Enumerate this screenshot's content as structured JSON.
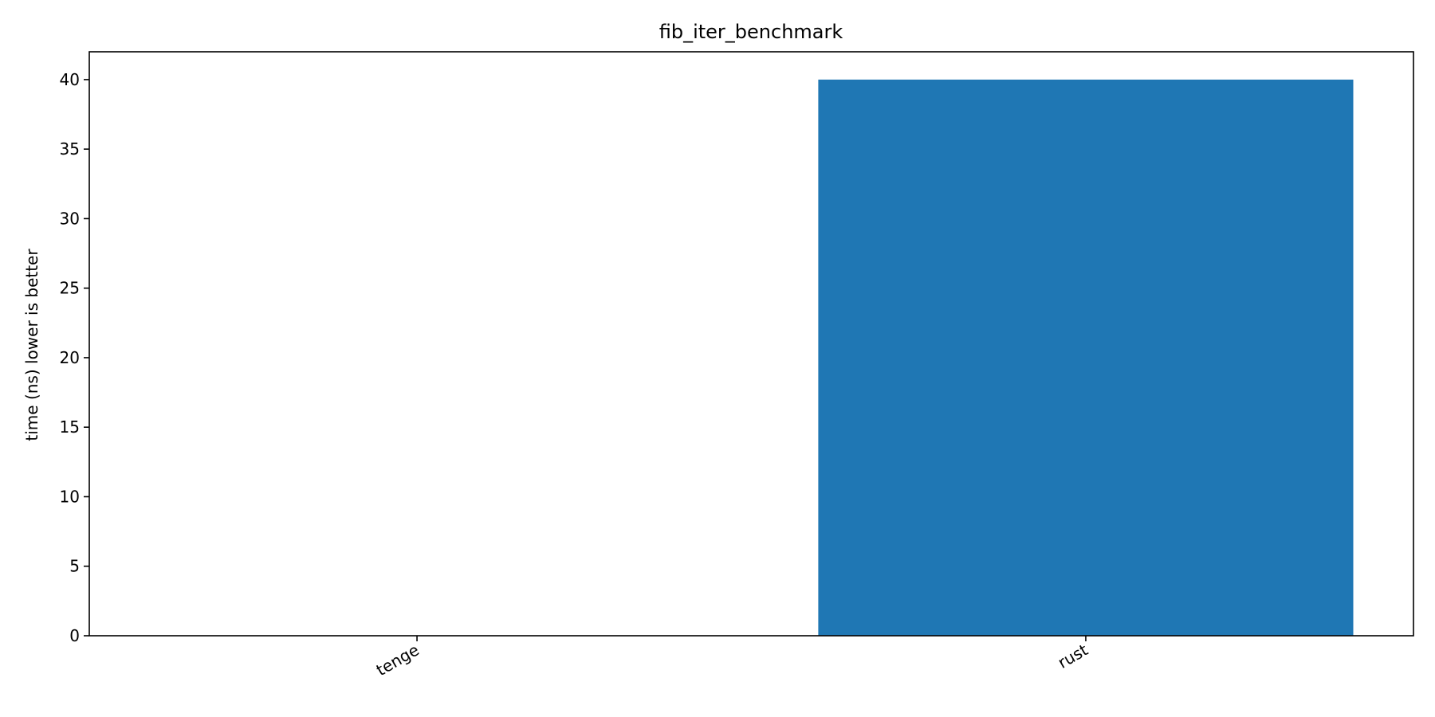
{
  "chart_data": {
    "type": "bar",
    "title": "fib_iter_benchmark",
    "xlabel": "",
    "ylabel": "time (ns) lower is better",
    "categories": [
      "tenge",
      "rust"
    ],
    "values": [
      0,
      40
    ],
    "ylim": [
      0,
      42
    ],
    "yticks": [
      0,
      5,
      10,
      15,
      20,
      25,
      30,
      35,
      40
    ],
    "bar_color": "#1f77b4",
    "grid": false,
    "legend": "none",
    "xtick_rotation": "30 degrees"
  }
}
